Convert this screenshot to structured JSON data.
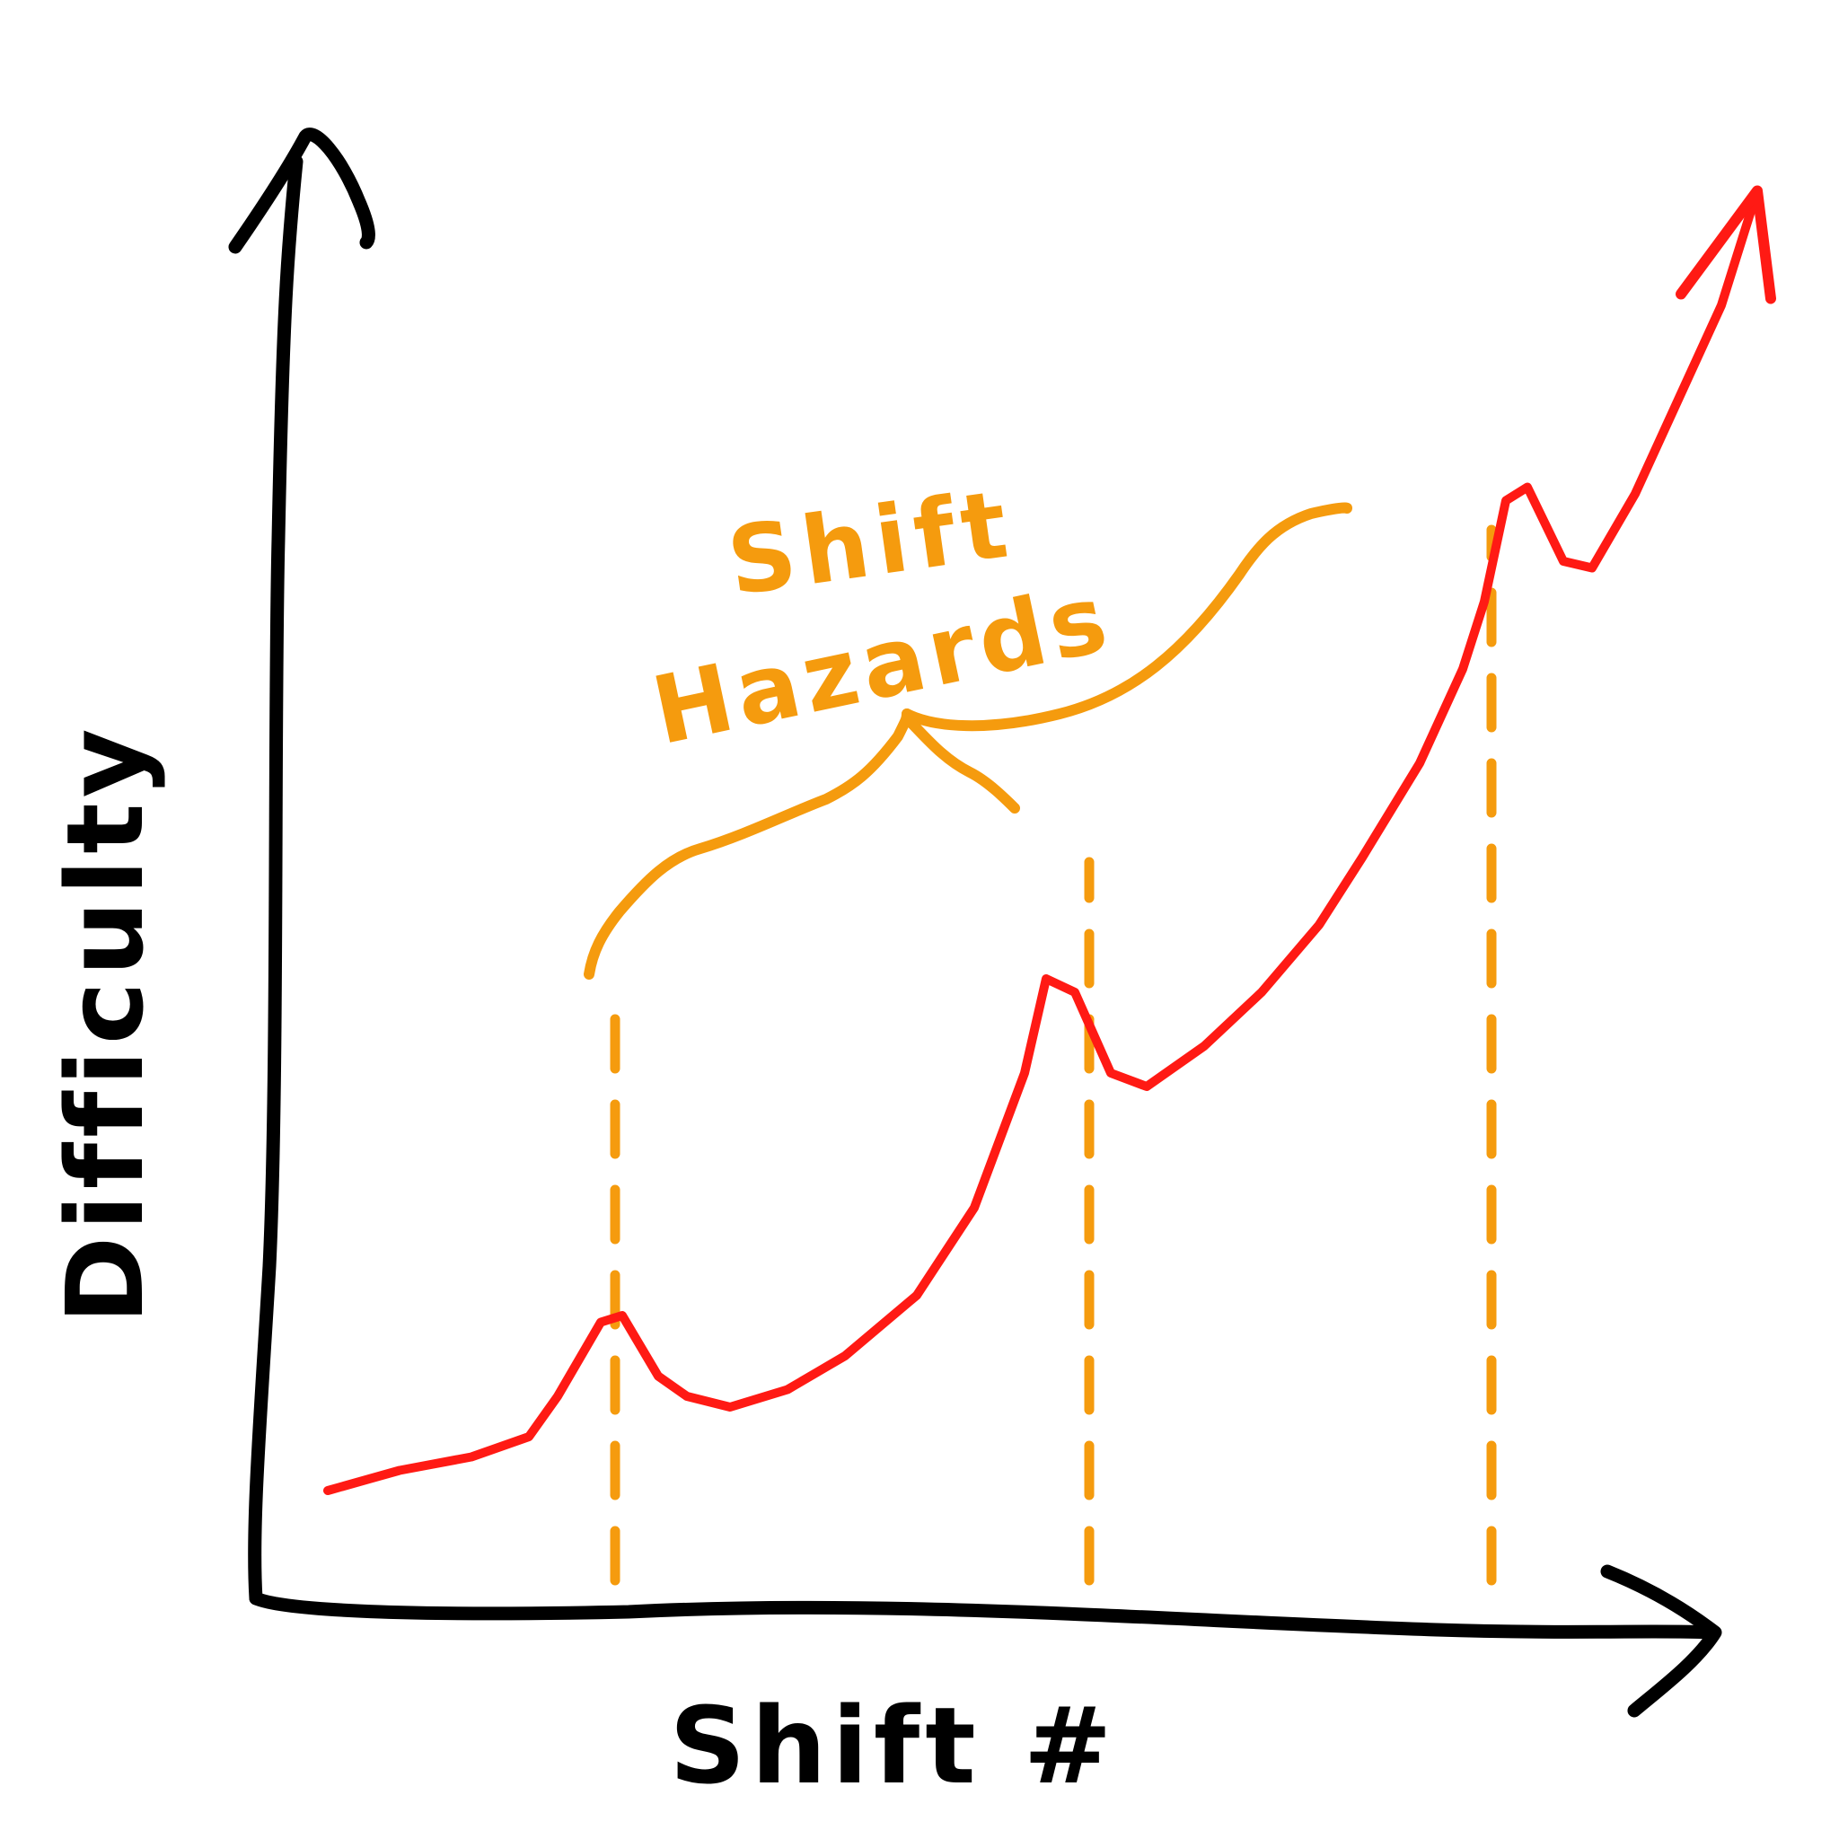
{
  "chart_data": {
    "type": "line",
    "title": "",
    "xlabel": "Shift #",
    "ylabel": "Difficulty",
    "xlim": [
      0,
      10
    ],
    "ylim": [
      0,
      10
    ],
    "grid": false,
    "legend": "none",
    "series": [
      {
        "color": "#ff1a14",
        "arrowhead": true,
        "points": [
          [
            0.5,
            0.8
          ],
          [
            1.0,
            0.95
          ],
          [
            1.5,
            1.05
          ],
          [
            1.9,
            1.2
          ],
          [
            2.1,
            1.5
          ],
          [
            2.4,
            2.05
          ],
          [
            2.55,
            2.1
          ],
          [
            2.8,
            1.65
          ],
          [
            3.0,
            1.5
          ],
          [
            3.3,
            1.42
          ],
          [
            3.7,
            1.55
          ],
          [
            4.1,
            1.8
          ],
          [
            4.6,
            2.25
          ],
          [
            5.0,
            2.9
          ],
          [
            5.35,
            3.9
          ],
          [
            5.5,
            4.6
          ],
          [
            5.7,
            4.5
          ],
          [
            5.95,
            3.9
          ],
          [
            6.2,
            3.8
          ],
          [
            6.6,
            4.1
          ],
          [
            7.0,
            4.5
          ],
          [
            7.4,
            5.0
          ],
          [
            7.7,
            5.5
          ],
          [
            8.1,
            6.2
          ],
          [
            8.4,
            6.9
          ],
          [
            8.55,
            7.4
          ],
          [
            8.7,
            8.15
          ],
          [
            8.85,
            8.25
          ],
          [
            9.1,
            7.7
          ],
          [
            9.3,
            7.65
          ],
          [
            9.6,
            8.2
          ],
          [
            9.9,
            8.9
          ],
          [
            10.2,
            9.6
          ],
          [
            10.45,
            10.45
          ]
        ]
      }
    ],
    "hazards_x": [
      2.5,
      5.8,
      8.6
    ],
    "annotations": [
      {
        "text": "Shift",
        "color": "#f59b0e"
      },
      {
        "text": "Hazards",
        "color": "#f59b0e"
      }
    ]
  },
  "colors": {
    "axis": "#000000",
    "line": "#ff1a14",
    "annotation": "#f59b0e",
    "background": "#ffffff"
  }
}
